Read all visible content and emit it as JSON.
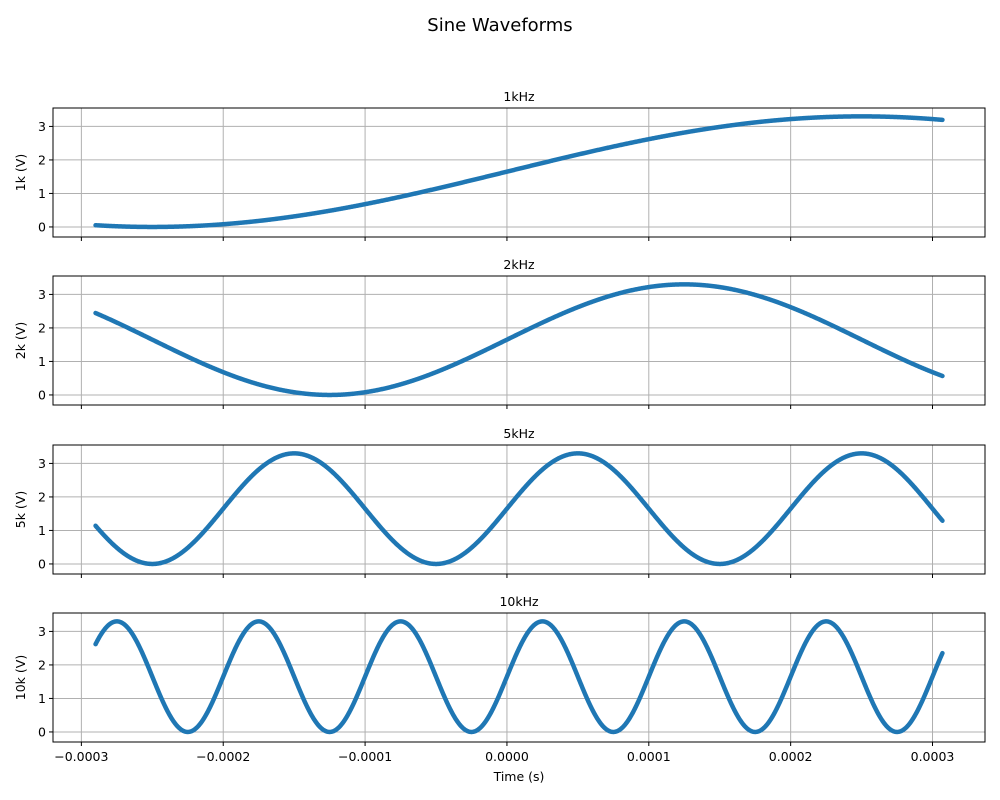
{
  "suptitle": "Sine Waveforms",
  "colors": {
    "line": "#1f77b4",
    "grid": "#b0b0b0",
    "axes": "#000000"
  },
  "chart_data": [
    {
      "type": "line",
      "title": "1kHz",
      "ylabel": "1k (V)",
      "xlabel": "",
      "frequency_hz": 1000,
      "offset_v": 1.65,
      "amplitude_v": 1.65,
      "phase_deg": 0,
      "x_start": -0.00029,
      "x_end": 0.000307,
      "xlim": [
        -0.00032,
        0.000337
      ],
      "ylim": [
        -0.3,
        3.55
      ],
      "yticks": [
        0,
        1,
        2,
        3
      ],
      "xticks": [
        -0.0003,
        -0.0002,
        -0.0001,
        0.0,
        0.0001,
        0.0002,
        0.0003
      ],
      "show_xticklabels": false,
      "grid": true
    },
    {
      "type": "line",
      "title": "2kHz",
      "ylabel": "2k (V)",
      "xlabel": "",
      "frequency_hz": 2000,
      "offset_v": 1.65,
      "amplitude_v": 1.65,
      "phase_deg": 0,
      "x_start": -0.00029,
      "x_end": 0.000307,
      "xlim": [
        -0.00032,
        0.000337
      ],
      "ylim": [
        -0.3,
        3.55
      ],
      "yticks": [
        0,
        1,
        2,
        3
      ],
      "xticks": [
        -0.0003,
        -0.0002,
        -0.0001,
        0.0,
        0.0001,
        0.0002,
        0.0003
      ],
      "show_xticklabels": false,
      "grid": true
    },
    {
      "type": "line",
      "title": "5kHz",
      "ylabel": "5k (V)",
      "xlabel": "",
      "frequency_hz": 5000,
      "offset_v": 1.65,
      "amplitude_v": 1.65,
      "phase_deg": 0,
      "x_start": -0.00029,
      "x_end": 0.000307,
      "xlim": [
        -0.00032,
        0.000337
      ],
      "ylim": [
        -0.3,
        3.55
      ],
      "yticks": [
        0,
        1,
        2,
        3
      ],
      "xticks": [
        -0.0003,
        -0.0002,
        -0.0001,
        0.0,
        0.0001,
        0.0002,
        0.0003
      ],
      "show_xticklabels": false,
      "grid": true
    },
    {
      "type": "line",
      "title": "10kHz",
      "ylabel": "10k (V)",
      "xlabel": "Time (s)",
      "frequency_hz": 10000,
      "offset_v": 1.65,
      "amplitude_v": 1.65,
      "phase_deg": 0,
      "x_start": -0.00029,
      "x_end": 0.000307,
      "xlim": [
        -0.00032,
        0.000337
      ],
      "ylim": [
        -0.3,
        3.55
      ],
      "yticks": [
        0,
        1,
        2,
        3
      ],
      "xticks": [
        -0.0003,
        -0.0002,
        -0.0001,
        0.0,
        0.0001,
        0.0002,
        0.0003
      ],
      "xticklabels": [
        "−0.0003",
        "−0.0002",
        "−0.0001",
        "0.0000",
        "0.0001",
        "0.0002",
        "0.0003"
      ],
      "show_xticklabels": true,
      "grid": true
    }
  ]
}
